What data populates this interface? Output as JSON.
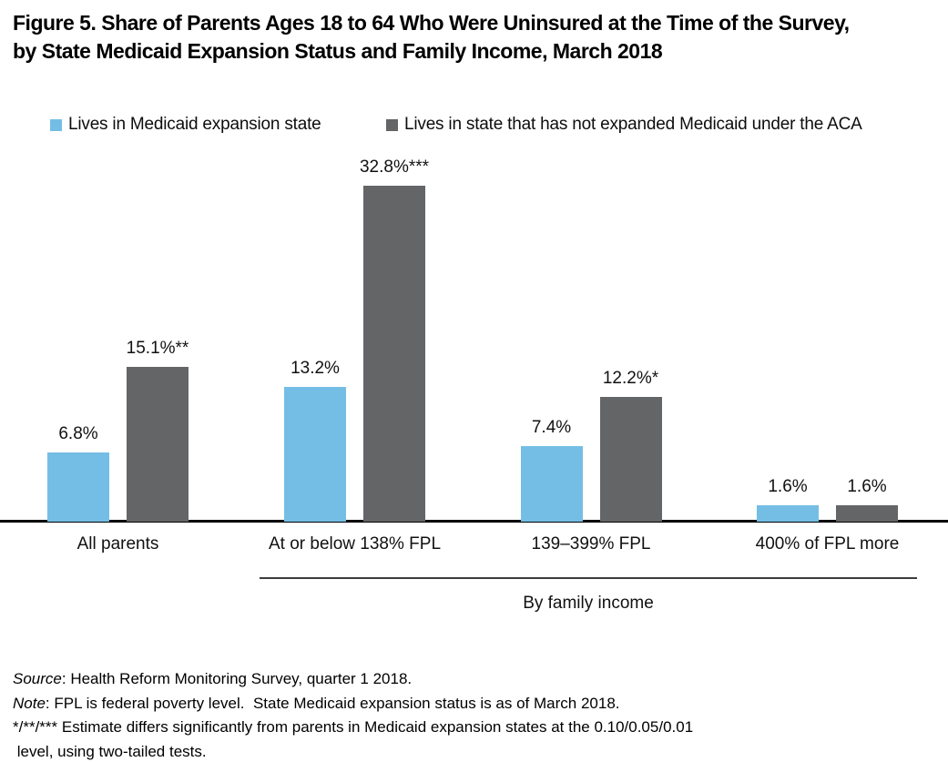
{
  "figure": {
    "title_line1": "Figure 5. Share of Parents Ages 18 to 64 Who Were Uninsured at the Time of the Survey,",
    "title_line2": "by State Medicaid Expansion Status and Family Income, March 2018"
  },
  "legend": {
    "items": [
      {
        "label": "Lives in Medicaid expansion state",
        "color": "#74BEE5"
      },
      {
        "label": "Lives in state that has not expanded Medicaid under the ACA",
        "color": "#636567"
      }
    ]
  },
  "chart_data": {
    "type": "bar",
    "title": "Figure 5. Share of Parents Ages 18 to 64 Who Were Uninsured at the Time of the Survey, by State Medicaid Expansion Status and Family Income, March 2018",
    "categories": [
      "All parents",
      "At or below 138% FPL",
      "139–399% FPL",
      "400% of FPL more"
    ],
    "series": [
      {
        "name": "Lives in Medicaid expansion state",
        "color": "#74BEE5",
        "values": [
          6.8,
          13.2,
          7.4,
          1.6
        ],
        "data_labels": [
          "6.8%",
          "13.2%",
          "7.4%",
          "1.6%"
        ]
      },
      {
        "name": "Lives in state that has not expanded Medicaid under the ACA",
        "color": "#636567",
        "values": [
          15.1,
          32.8,
          12.2,
          1.6
        ],
        "data_labels": [
          "15.1%**",
          "32.8%***",
          "12.2%*",
          "1.6%"
        ]
      }
    ],
    "xlabel": "By family income",
    "xlabel_span_categories": [
      "At or below 138% FPL",
      "139–399% FPL",
      "400% of FPL more"
    ],
    "ylabel": "",
    "ylim": [
      0,
      36
    ],
    "unit": "percent",
    "grid": false,
    "y_axis_visible": false,
    "legend_position": "top"
  },
  "notes": {
    "source": {
      "prefix": "Source",
      "rest": ": Health Reform Monitoring Survey, quarter 1 2018."
    },
    "note": {
      "prefix": "Note",
      "rest": ": FPL is federal poverty level.  State Medicaid expansion status is as of March 2018."
    },
    "significance": {
      "line1": "*/**/*** Estimate differs significantly from parents in Medicaid expansion states at the 0.10/0.05/0.01",
      "line2": " level, using two-tailed tests."
    }
  }
}
